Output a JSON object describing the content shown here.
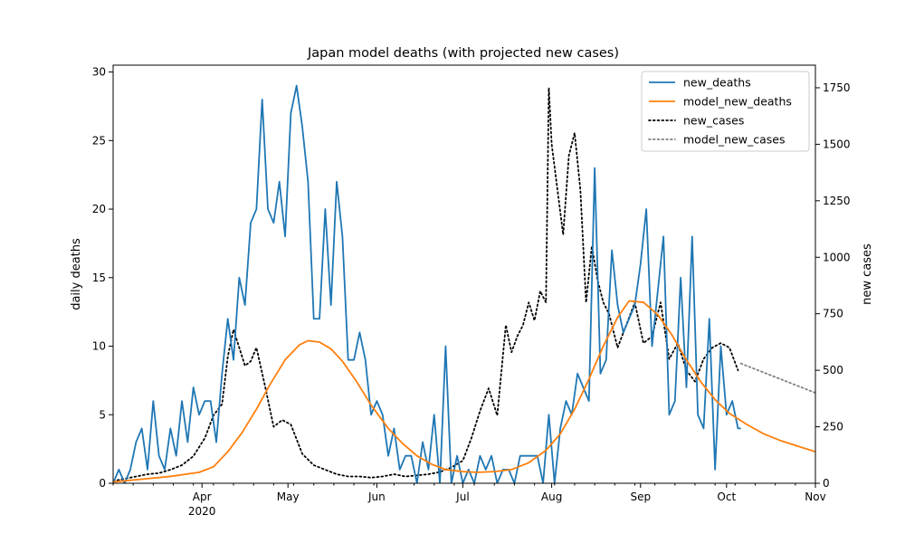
{
  "chart_data": {
    "type": "line",
    "title": "Japan model deaths (with projected new cases)",
    "ylabel_left": "daily deaths",
    "ylabel_right": "new cases",
    "xlim": [
      "2020-03-01",
      "2020-11-01"
    ],
    "ylim_left": [
      0,
      30.5
    ],
    "ylim_right": [
      0,
      1850
    ],
    "x_ticks": [
      {
        "date": "2020-04-01",
        "label": "Apr",
        "sublabel": "2020"
      },
      {
        "date": "2020-05-01",
        "label": "May",
        "sublabel": ""
      },
      {
        "date": "2020-06-01",
        "label": "Jun",
        "sublabel": ""
      },
      {
        "date": "2020-07-01",
        "label": "Jul",
        "sublabel": ""
      },
      {
        "date": "2020-08-01",
        "label": "Aug",
        "sublabel": ""
      },
      {
        "date": "2020-09-01",
        "label": "Sep",
        "sublabel": ""
      },
      {
        "date": "2020-10-01",
        "label": "Oct",
        "sublabel": ""
      },
      {
        "date": "2020-11-01",
        "label": "Nov",
        "sublabel": ""
      }
    ],
    "y_ticks_left": [
      "0",
      "5",
      "10",
      "15",
      "20",
      "25",
      "30"
    ],
    "y_ticks_right": [
      "0",
      "250",
      "500",
      "750",
      "1000",
      "1250",
      "1500",
      "1750"
    ],
    "legend_position": "top-right",
    "grid": false,
    "series": [
      {
        "name": "new_deaths",
        "axis": "left",
        "color": "#1f77b4",
        "style": "solid",
        "x": [
          "2020-03-01",
          "2020-03-03",
          "2020-03-05",
          "2020-03-07",
          "2020-03-09",
          "2020-03-11",
          "2020-03-13",
          "2020-03-15",
          "2020-03-17",
          "2020-03-19",
          "2020-03-21",
          "2020-03-23",
          "2020-03-25",
          "2020-03-27",
          "2020-03-29",
          "2020-03-31",
          "2020-04-02",
          "2020-04-04",
          "2020-04-06",
          "2020-04-08",
          "2020-04-10",
          "2020-04-12",
          "2020-04-14",
          "2020-04-16",
          "2020-04-18",
          "2020-04-20",
          "2020-04-22",
          "2020-04-24",
          "2020-04-26",
          "2020-04-28",
          "2020-04-30",
          "2020-05-02",
          "2020-05-04",
          "2020-05-06",
          "2020-05-08",
          "2020-05-10",
          "2020-05-12",
          "2020-05-14",
          "2020-05-16",
          "2020-05-18",
          "2020-05-20",
          "2020-05-22",
          "2020-05-24",
          "2020-05-26",
          "2020-05-28",
          "2020-05-30",
          "2020-06-01",
          "2020-06-03",
          "2020-06-05",
          "2020-06-07",
          "2020-06-09",
          "2020-06-11",
          "2020-06-13",
          "2020-06-15",
          "2020-06-17",
          "2020-06-19",
          "2020-06-21",
          "2020-06-23",
          "2020-06-25",
          "2020-06-27",
          "2020-06-29",
          "2020-07-01",
          "2020-07-03",
          "2020-07-05",
          "2020-07-07",
          "2020-07-09",
          "2020-07-11",
          "2020-07-13",
          "2020-07-15",
          "2020-07-17",
          "2020-07-19",
          "2020-07-21",
          "2020-07-23",
          "2020-07-25",
          "2020-07-27",
          "2020-07-29",
          "2020-07-31",
          "2020-08-02",
          "2020-08-04",
          "2020-08-06",
          "2020-08-08",
          "2020-08-10",
          "2020-08-12",
          "2020-08-14",
          "2020-08-16",
          "2020-08-18",
          "2020-08-20",
          "2020-08-22",
          "2020-08-24",
          "2020-08-26",
          "2020-08-28",
          "2020-08-30",
          "2020-09-01",
          "2020-09-03",
          "2020-09-05",
          "2020-09-07",
          "2020-09-09",
          "2020-09-11",
          "2020-09-13",
          "2020-09-15",
          "2020-09-17",
          "2020-09-19",
          "2020-09-21",
          "2020-09-23",
          "2020-09-25",
          "2020-09-27",
          "2020-09-29",
          "2020-10-01",
          "2020-10-03",
          "2020-10-05",
          "2020-10-06"
        ],
        "values": [
          0,
          1,
          0,
          1,
          3,
          4,
          1,
          6,
          2,
          1,
          4,
          2,
          6,
          3,
          7,
          5,
          6,
          6,
          3,
          8,
          12,
          9,
          15,
          13,
          19,
          20,
          28,
          20,
          19,
          22,
          18,
          27,
          29,
          26,
          22,
          12,
          12,
          20,
          13,
          22,
          18,
          9,
          9,
          11,
          9,
          5,
          6,
          5,
          2,
          4,
          1,
          2,
          2,
          0,
          3,
          1,
          5,
          0,
          10,
          0,
          2,
          0,
          1,
          0,
          2,
          1,
          2,
          0,
          1,
          1,
          0,
          2,
          2,
          2,
          2,
          0,
          5,
          0,
          4,
          6,
          5,
          8,
          7,
          6,
          23,
          8,
          9,
          17,
          13,
          11,
          12,
          13,
          16,
          20,
          10,
          14,
          18,
          5,
          6,
          15,
          7,
          18,
          5,
          4,
          12,
          1,
          10,
          5,
          6,
          4,
          4
        ],
        "series_note": ""
      },
      {
        "name": "model_new_deaths",
        "axis": "left",
        "color": "#ff7f0e",
        "style": "solid",
        "x": [
          "2020-03-01",
          "2020-03-11",
          "2020-03-21",
          "2020-03-31",
          "2020-04-05",
          "2020-04-10",
          "2020-04-15",
          "2020-04-20",
          "2020-04-25",
          "2020-04-30",
          "2020-05-05",
          "2020-05-08",
          "2020-05-12",
          "2020-05-16",
          "2020-05-20",
          "2020-05-25",
          "2020-05-30",
          "2020-06-05",
          "2020-06-10",
          "2020-06-15",
          "2020-06-20",
          "2020-06-25",
          "2020-07-01",
          "2020-07-06",
          "2020-07-12",
          "2020-07-18",
          "2020-07-24",
          "2020-07-30",
          "2020-08-04",
          "2020-08-09",
          "2020-08-14",
          "2020-08-19",
          "2020-08-24",
          "2020-08-28",
          "2020-09-02",
          "2020-09-07",
          "2020-09-12",
          "2020-09-17",
          "2020-09-22",
          "2020-09-27",
          "2020-10-02",
          "2020-10-08",
          "2020-10-14",
          "2020-10-20",
          "2020-10-26",
          "2020-11-01"
        ],
        "values": [
          0.1,
          0.3,
          0.5,
          0.8,
          1.2,
          2.3,
          3.7,
          5.4,
          7.3,
          9.0,
          10.1,
          10.4,
          10.3,
          9.8,
          8.9,
          7.4,
          5.7,
          4.0,
          2.9,
          2.0,
          1.4,
          1.0,
          0.85,
          0.8,
          0.85,
          1.0,
          1.5,
          2.4,
          3.6,
          5.4,
          7.6,
          10.0,
          12.1,
          13.3,
          13.2,
          12.3,
          10.8,
          9.0,
          7.4,
          6.1,
          5.1,
          4.3,
          3.6,
          3.1,
          2.7,
          2.3
        ]
      },
      {
        "name": "new_cases",
        "axis": "right",
        "color": "#000000",
        "style": "dotted",
        "x": [
          "2020-03-01",
          "2020-03-05",
          "2020-03-09",
          "2020-03-13",
          "2020-03-17",
          "2020-03-21",
          "2020-03-25",
          "2020-03-29",
          "2020-04-02",
          "2020-04-05",
          "2020-04-08",
          "2020-04-10",
          "2020-04-12",
          "2020-04-14",
          "2020-04-16",
          "2020-04-18",
          "2020-04-20",
          "2020-04-23",
          "2020-04-26",
          "2020-04-29",
          "2020-05-02",
          "2020-05-06",
          "2020-05-10",
          "2020-05-14",
          "2020-05-18",
          "2020-05-22",
          "2020-05-26",
          "2020-05-30",
          "2020-06-03",
          "2020-06-07",
          "2020-06-11",
          "2020-06-15",
          "2020-06-19",
          "2020-06-23",
          "2020-06-27",
          "2020-07-01",
          "2020-07-04",
          "2020-07-07",
          "2020-07-10",
          "2020-07-13",
          "2020-07-16",
          "2020-07-18",
          "2020-07-20",
          "2020-07-22",
          "2020-07-24",
          "2020-07-26",
          "2020-07-28",
          "2020-07-30",
          "2020-07-31",
          "2020-08-01",
          "2020-08-03",
          "2020-08-05",
          "2020-08-07",
          "2020-08-09",
          "2020-08-11",
          "2020-08-13",
          "2020-08-15",
          "2020-08-17",
          "2020-08-19",
          "2020-08-21",
          "2020-08-24",
          "2020-08-27",
          "2020-08-30",
          "2020-09-02",
          "2020-09-05",
          "2020-09-08",
          "2020-09-11",
          "2020-09-14",
          "2020-09-17",
          "2020-09-20",
          "2020-09-23",
          "2020-09-26",
          "2020-09-29",
          "2020-10-02",
          "2020-10-05"
        ],
        "values": [
          10,
          20,
          30,
          40,
          45,
          60,
          80,
          120,
          200,
          300,
          350,
          560,
          680,
          600,
          520,
          540,
          600,
          430,
          250,
          280,
          260,
          130,
          80,
          60,
          40,
          30,
          30,
          25,
          30,
          40,
          30,
          35,
          40,
          50,
          70,
          100,
          200,
          320,
          420,
          300,
          700,
          580,
          650,
          700,
          800,
          720,
          850,
          800,
          1750,
          1500,
          1300,
          1100,
          1450,
          1550,
          1300,
          800,
          1050,
          900,
          800,
          750,
          600,
          700,
          800,
          620,
          650,
          800,
          550,
          620,
          500,
          450,
          550,
          600,
          620,
          600,
          500
        ]
      },
      {
        "name": "model_new_cases",
        "axis": "right",
        "color": "#808080",
        "style": "dotted",
        "x": [
          "2020-10-06",
          "2020-11-01"
        ],
        "values": [
          530,
          400
        ]
      }
    ]
  }
}
